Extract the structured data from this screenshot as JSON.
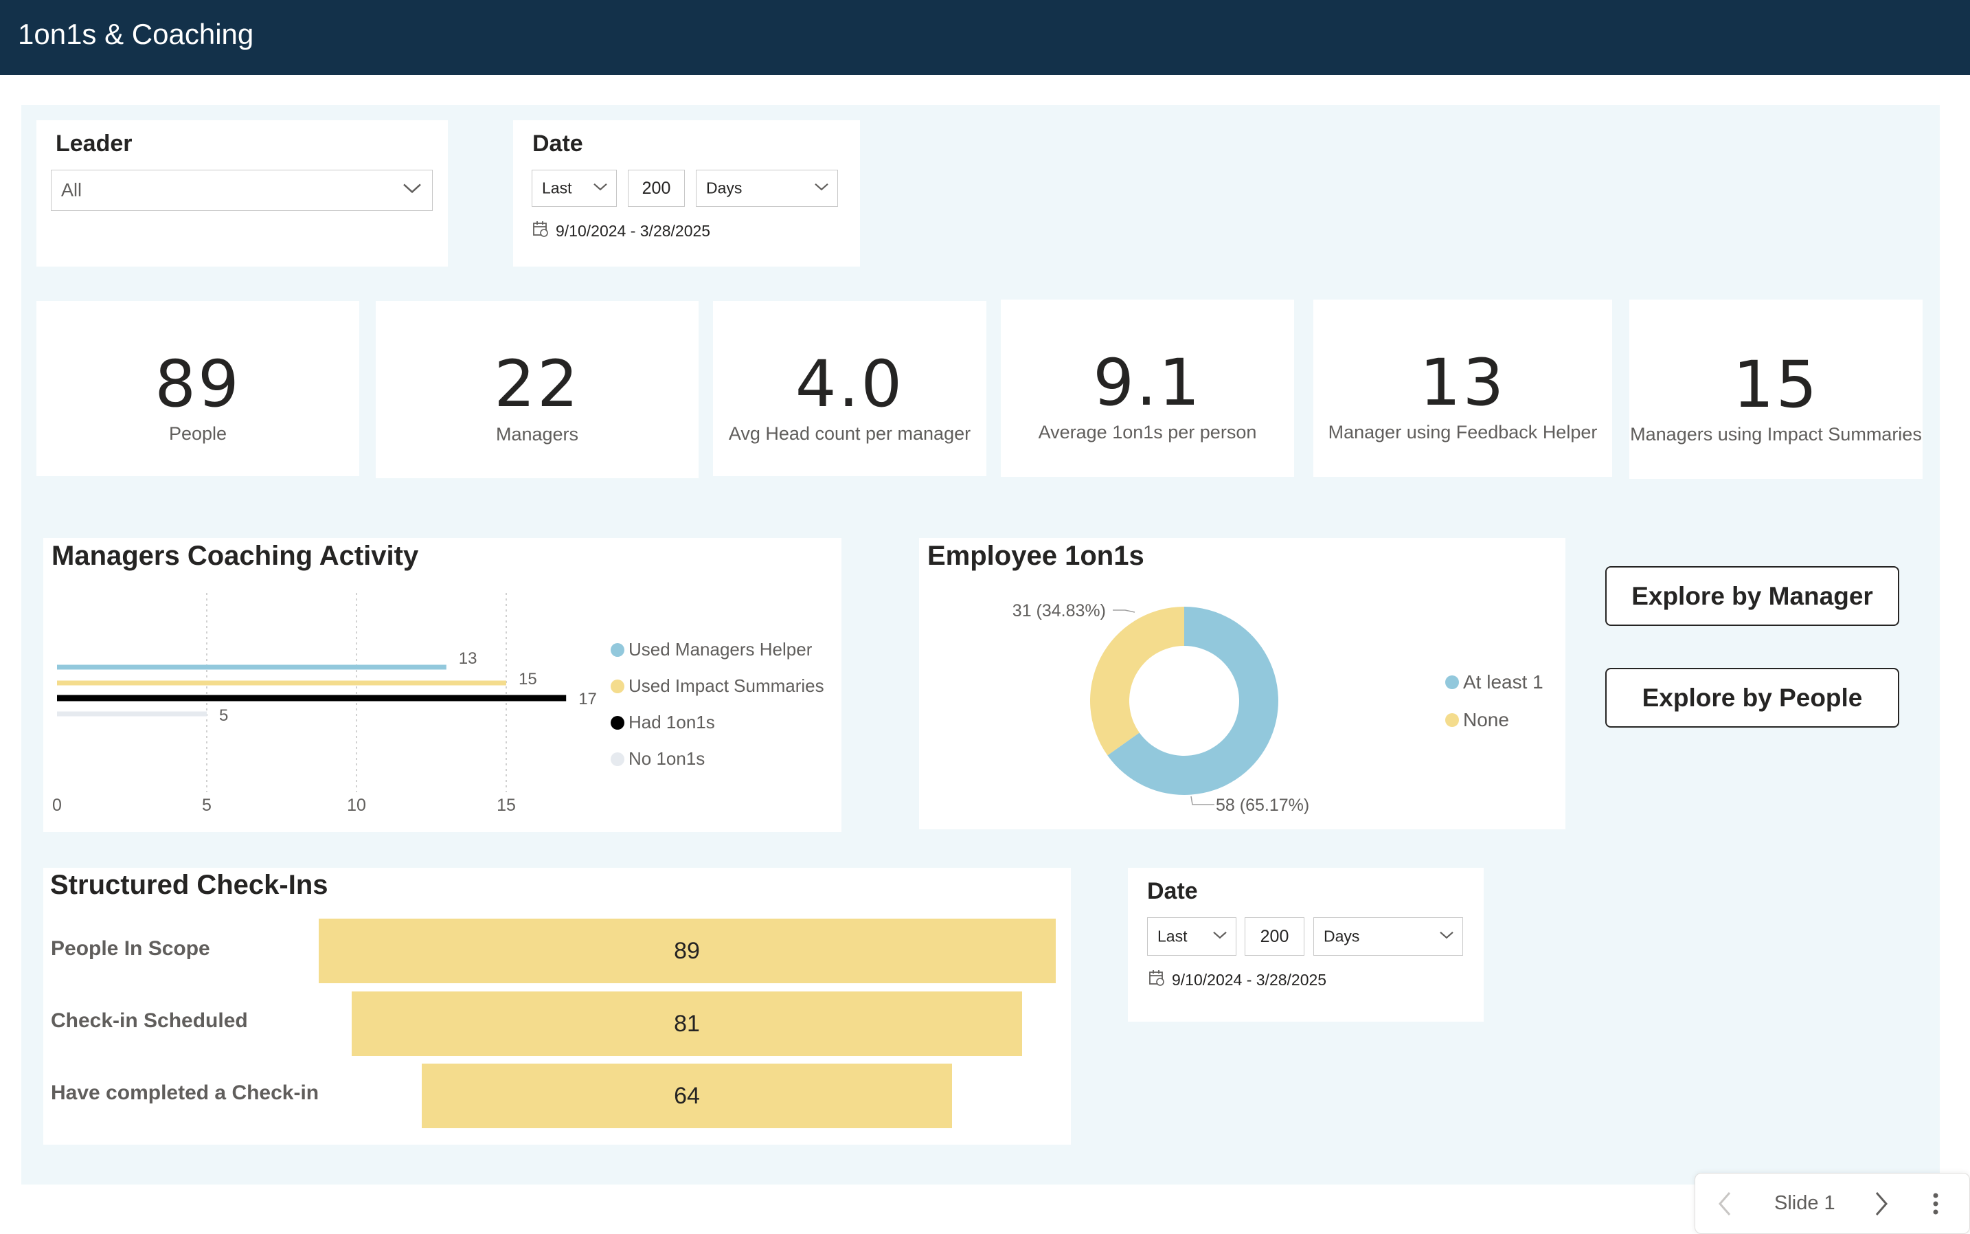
{
  "header": {
    "title": "1on1s & Coaching"
  },
  "leader_slicer": {
    "title": "Leader",
    "selected": "All"
  },
  "date_slicer_top": {
    "title": "Date",
    "period": "Last",
    "amount": "200",
    "unit": "Days",
    "range": "9/10/2024 - 3/28/2025"
  },
  "kpis": [
    {
      "value": "89",
      "label": "People"
    },
    {
      "value": "22",
      "label": "Managers"
    },
    {
      "value": "4.0",
      "label": "Avg Head count per manager"
    },
    {
      "value": "9.1",
      "label": "Average 1on1s per person"
    },
    {
      "value": "13",
      "label": "Manager using Feedback Helper"
    },
    {
      "value": "15",
      "label": "Managers using Impact Summaries"
    }
  ],
  "chart_data": [
    {
      "type": "bar",
      "title": "Managers Coaching Activity",
      "orientation": "horizontal",
      "categories": [
        "Used Managers Helper",
        "Used Impact Summaries",
        "Had 1on1s",
        "No 1on1s"
      ],
      "values": [
        13,
        15,
        17,
        5
      ],
      "colors": [
        "#92c8dc",
        "#f4dc8d",
        "#000000",
        "#e6eaef"
      ],
      "x_ticks": [
        "0",
        "5",
        "10",
        "15"
      ],
      "xlim": [
        0,
        17
      ],
      "grid": true,
      "legend": "right"
    },
    {
      "type": "pie",
      "title": "Employee 1on1s",
      "donut": true,
      "categories": [
        "At least 1",
        "None"
      ],
      "values": [
        58,
        31
      ],
      "labels": [
        "58 (65.17%)",
        "31 (34.83%)"
      ],
      "colors": [
        "#92c8dc",
        "#f4dc8d"
      ],
      "legend": "right"
    },
    {
      "type": "bar",
      "title": "Structured Check-Ins",
      "subtype": "funnel",
      "categories": [
        "People In Scope",
        "Check-in Scheduled",
        "Have completed a Check-in"
      ],
      "values": [
        89,
        81,
        64
      ],
      "colors": [
        "#f4dc8d"
      ]
    }
  ],
  "buttons": {
    "explore_manager": "Explore by Manager",
    "explore_people": "Explore by People"
  },
  "date_slicer_bottom": {
    "title": "Date",
    "period": "Last",
    "amount": "200",
    "unit": "Days",
    "range": "9/10/2024 - 3/28/2025"
  },
  "slide_nav": {
    "label": "Slide 1"
  }
}
